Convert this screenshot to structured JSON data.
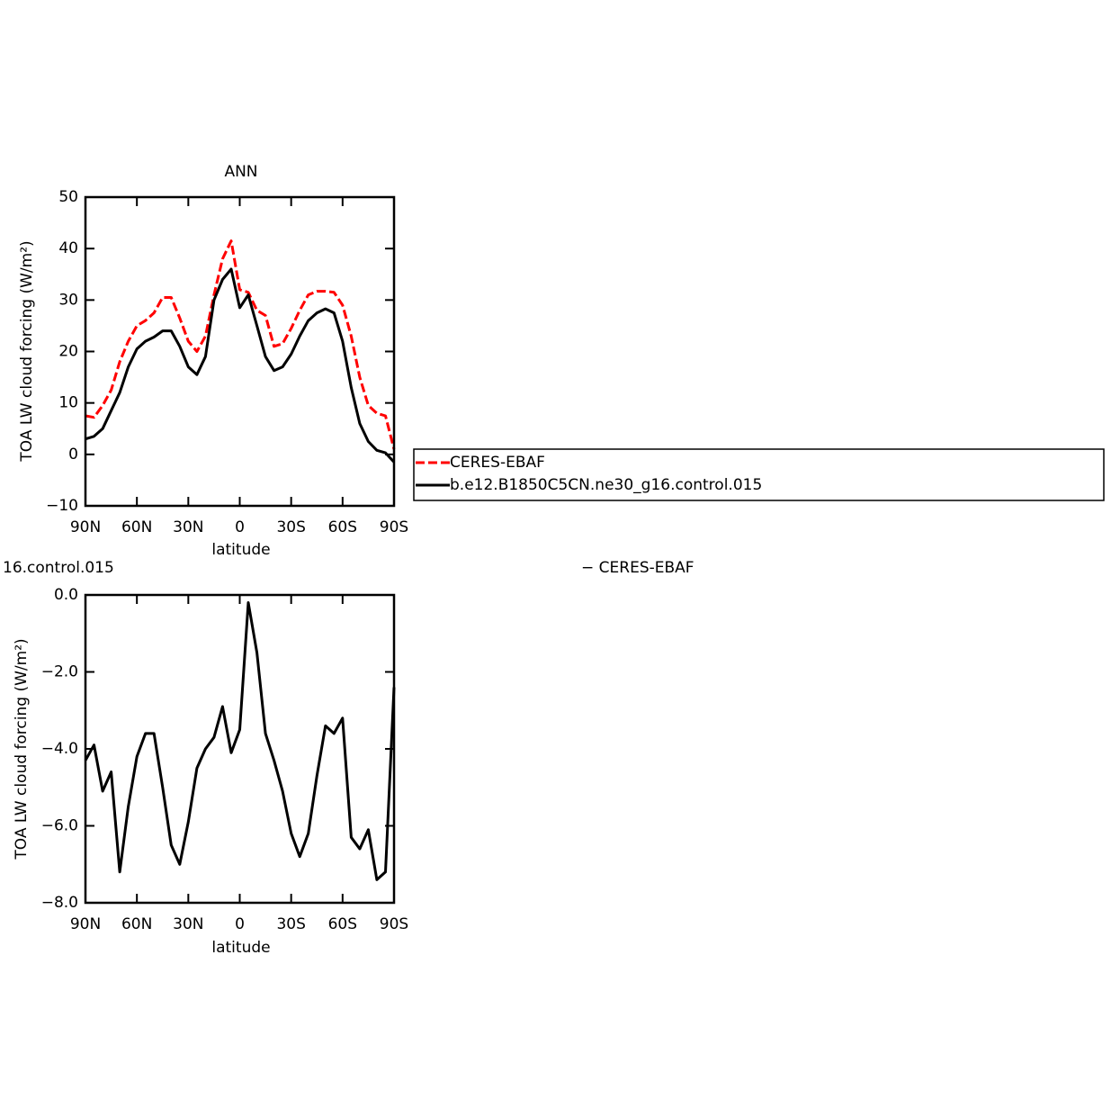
{
  "chart_data": [
    {
      "type": "line",
      "title": "ANN",
      "xlabel": "latitude",
      "ylabel": "TOA LW cloud forcing (W/m²)",
      "x": [
        90,
        85,
        80,
        75,
        70,
        65,
        60,
        55,
        50,
        45,
        40,
        35,
        30,
        25,
        20,
        15,
        10,
        5,
        0,
        -5,
        -10,
        -15,
        -20,
        -25,
        -30,
        -35,
        -40,
        -45,
        -50,
        -55,
        -60,
        -65,
        -70,
        -75,
        -80,
        -85,
        -90
      ],
      "series": [
        {
          "name": "CERES-EBAF",
          "color": "#ff0000",
          "dash": true,
          "values": [
            7.5,
            7.2,
            9.5,
            12.5,
            18,
            22,
            25,
            26,
            27.5,
            30.5,
            30.5,
            26.5,
            22,
            20,
            23,
            31,
            38,
            41.5,
            32,
            31.5,
            28,
            27,
            21,
            21.5,
            24.5,
            28,
            31,
            31.7,
            31.7,
            31.5,
            29,
            23,
            15,
            9.5,
            8,
            7.5,
            1
          ]
        },
        {
          "name": "b.e12.B1850C5CN.ne30_g16.control.015",
          "color": "#000000",
          "dash": false,
          "values": [
            3,
            3.5,
            5,
            8.5,
            12,
            17,
            20.5,
            22,
            22.8,
            24,
            24,
            21,
            17,
            15.5,
            19,
            30,
            34,
            36,
            28.5,
            31,
            25,
            19,
            16.3,
            17,
            19.5,
            23,
            26,
            27.5,
            28.3,
            27.5,
            22,
            13,
            6,
            2.5,
            0.8,
            0.3,
            -1.5
          ]
        }
      ],
      "xlim": [
        90,
        -90
      ],
      "xticks": [
        {
          "value": 90,
          "label": "90N"
        },
        {
          "value": 60,
          "label": "60N"
        },
        {
          "value": 30,
          "label": "30N"
        },
        0,
        {
          "value": -30,
          "label": "30S"
        },
        {
          "value": -60,
          "label": "60S"
        },
        {
          "value": -90,
          "label": "90S"
        }
      ],
      "ylim": [
        -10,
        50
      ],
      "yticks": [
        {
          "value": -10,
          "label": "−10"
        },
        0,
        10,
        20,
        30,
        40,
        50
      ]
    },
    {
      "type": "line",
      "title_left": "16.control.015",
      "title_right": "− CERES-EBAF",
      "xlabel": "latitude",
      "ylabel": "TOA LW cloud forcing (W/m²)",
      "x": [
        90,
        85,
        80,
        75,
        70,
        65,
        60,
        55,
        50,
        45,
        40,
        35,
        30,
        25,
        20,
        15,
        10,
        5,
        0,
        -5,
        -10,
        -15,
        -20,
        -25,
        -30,
        -35,
        -40,
        -45,
        -50,
        -55,
        -60,
        -65,
        -70,
        -75,
        -80,
        -85,
        -90
      ],
      "series": [
        {
          "color": "#000000",
          "dash": false,
          "values": [
            -4.3,
            -3.9,
            -5.1,
            -4.6,
            -7.2,
            -5.5,
            -4.2,
            -3.6,
            -3.6,
            -5.0,
            -6.5,
            -7.0,
            -5.9,
            -4.5,
            -4.0,
            -3.7,
            -2.9,
            -4.1,
            -3.5,
            -0.2,
            -1.5,
            -3.6,
            -4.3,
            -5.1,
            -6.2,
            -6.8,
            -6.2,
            -4.7,
            -3.4,
            -3.6,
            -3.2,
            -6.3,
            -6.6,
            -6.1,
            -7.4,
            -7.2,
            -2.4
          ]
        }
      ],
      "xlim": [
        90,
        -90
      ],
      "xticks": [
        {
          "value": 90,
          "label": "90N"
        },
        {
          "value": 60,
          "label": "60N"
        },
        {
          "value": 30,
          "label": "30N"
        },
        0,
        {
          "value": -30,
          "label": "30S"
        },
        {
          "value": -60,
          "label": "60S"
        },
        {
          "value": -90,
          "label": "90S"
        }
      ],
      "ylim": [
        -8,
        0
      ],
      "yticks": [
        {
          "value": -8,
          "label": "−8.0"
        },
        {
          "value": -6,
          "label": "−6.0"
        },
        {
          "value": -4,
          "label": "−4.0"
        },
        {
          "value": -2,
          "label": "−2.0"
        },
        {
          "value": 0,
          "label": "0.0"
        }
      ]
    }
  ]
}
